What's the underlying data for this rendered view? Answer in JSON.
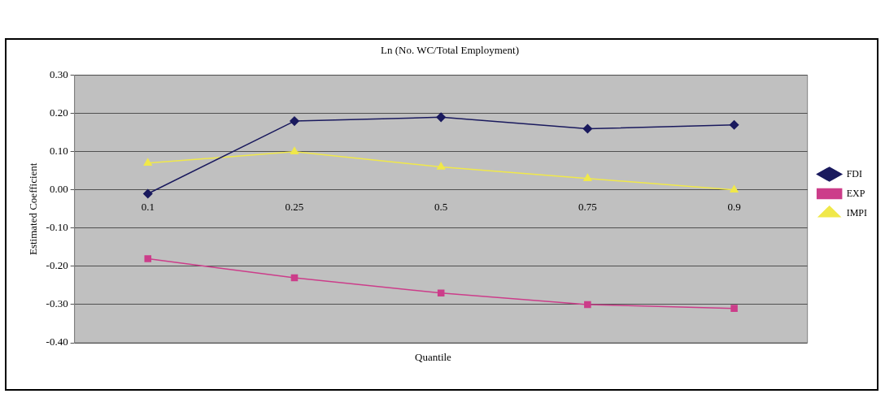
{
  "chart_data": {
    "type": "line",
    "title": "Ln (No. WC/Total Employment)",
    "xlabel": "Quantile",
    "ylabel": "Estimated Coefficient",
    "categories": [
      "0.1",
      "0.25",
      "0.5",
      "0.75",
      "0.9"
    ],
    "series": [
      {
        "name": "FDI",
        "color": "#1a1a5e",
        "marker": "diamond",
        "values": [
          -0.01,
          0.18,
          0.19,
          0.16,
          0.17
        ]
      },
      {
        "name": "EXP",
        "color": "#cc3d8a",
        "marker": "square",
        "values": [
          -0.18,
          -0.23,
          -0.27,
          -0.3,
          -0.31
        ]
      },
      {
        "name": "IMPI",
        "color": "#f0e84a",
        "marker": "triangle",
        "values": [
          0.07,
          0.1,
          0.06,
          0.03,
          0.0
        ]
      }
    ],
    "ylim": [
      -0.4,
      0.3
    ],
    "yticks": [
      {
        "value": -0.4,
        "label": "-0.40"
      },
      {
        "value": -0.3,
        "label": "-0.30"
      },
      {
        "value": -0.2,
        "label": "-0.20"
      },
      {
        "value": -0.1,
        "label": "-0.10"
      },
      {
        "value": 0,
        "label": "0.00"
      },
      {
        "value": 0.1,
        "label": "0.10"
      },
      {
        "value": 0.2,
        "label": "0.20"
      },
      {
        "value": 0.3,
        "label": "0.30"
      }
    ],
    "grid": "y",
    "legend": "right"
  }
}
